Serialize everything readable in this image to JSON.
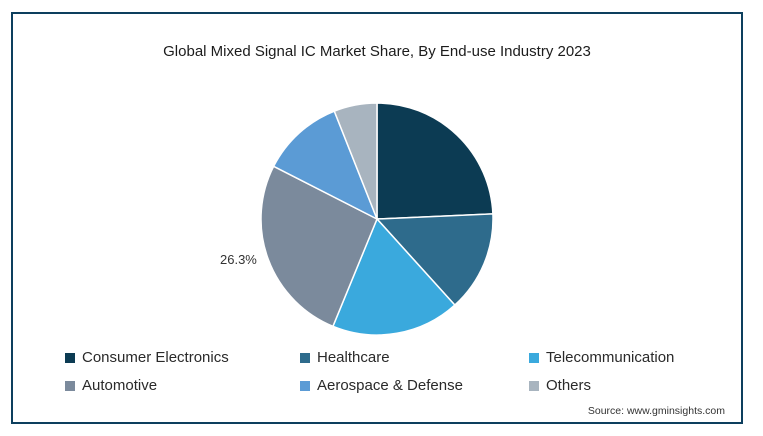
{
  "chart_data": {
    "type": "pie",
    "title": "Global Mixed Signal IC Market Share, By End-use Industry 2023",
    "categories": [
      "Consumer Electronics",
      "Healthcare",
      "Telecommunication",
      "Automotive",
      "Aerospace & Defense",
      "Others"
    ],
    "values": [
      24.3,
      14.0,
      17.9,
      26.3,
      11.5,
      6.0
    ],
    "colors": [
      "#0c3b53",
      "#2e6b8c",
      "#3aa9dd",
      "#7b8a9c",
      "#5b9bd5",
      "#a8b4bf"
    ],
    "data_labels": [
      {
        "category": "Automotive",
        "text": "26.3%"
      }
    ],
    "legend_position": "bottom"
  },
  "source_text": "Source: www.gminsights.com"
}
